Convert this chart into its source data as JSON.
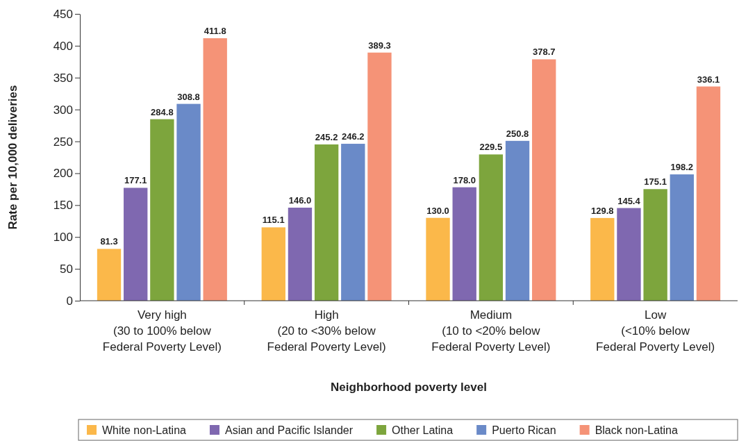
{
  "chart_data": {
    "type": "bar",
    "xlabel": "Neighborhood poverty level",
    "ylabel": "Rate per 10,000 deliveries",
    "categories": [
      "Very high\n(30 to 100% below\nFederal Poverty Level)",
      "High\n(20 to <30% below\nFederal Poverty Level)",
      "Medium\n(10 to <20% below\nFederal Poverty Level)",
      "Low\n(<10% below\nFederal Poverty Level)"
    ],
    "series": [
      {
        "name": "White non-Latina",
        "color": "#fbb84a",
        "values": [
          81.3,
          115.1,
          130.0,
          129.8
        ],
        "value_labels": [
          "81.3",
          "115.1",
          "130.0",
          "129.8"
        ]
      },
      {
        "name": "Asian and Pacific Islander",
        "color": "#7f68b0",
        "values": [
          177.1,
          146.0,
          178.0,
          145.4
        ],
        "value_labels": [
          "177.1",
          "146.0",
          "178.0",
          "145.4"
        ]
      },
      {
        "name": "Other Latina",
        "color": "#7da53d",
        "values": [
          284.8,
          245.2,
          229.5,
          175.1
        ],
        "value_labels": [
          "284.8",
          "245.2",
          "229.5",
          "175.1"
        ]
      },
      {
        "name": "Puerto Rican",
        "color": "#6a8ac8",
        "values": [
          308.8,
          246.2,
          250.8,
          198.2
        ],
        "value_labels": [
          "308.8",
          "246.2",
          "250.8",
          "198.2"
        ]
      },
      {
        "name": "Black non-Latina",
        "color": "#f59377",
        "values": [
          411.8,
          389.3,
          378.7,
          336.1
        ],
        "value_labels": [
          "411.8",
          "389.3",
          "378.7",
          "336.1"
        ]
      }
    ],
    "ylim": [
      0,
      450
    ],
    "yticks": [
      0,
      50,
      100,
      150,
      200,
      250,
      300,
      350,
      400,
      450
    ],
    "grid": false,
    "legend": "bottom"
  }
}
